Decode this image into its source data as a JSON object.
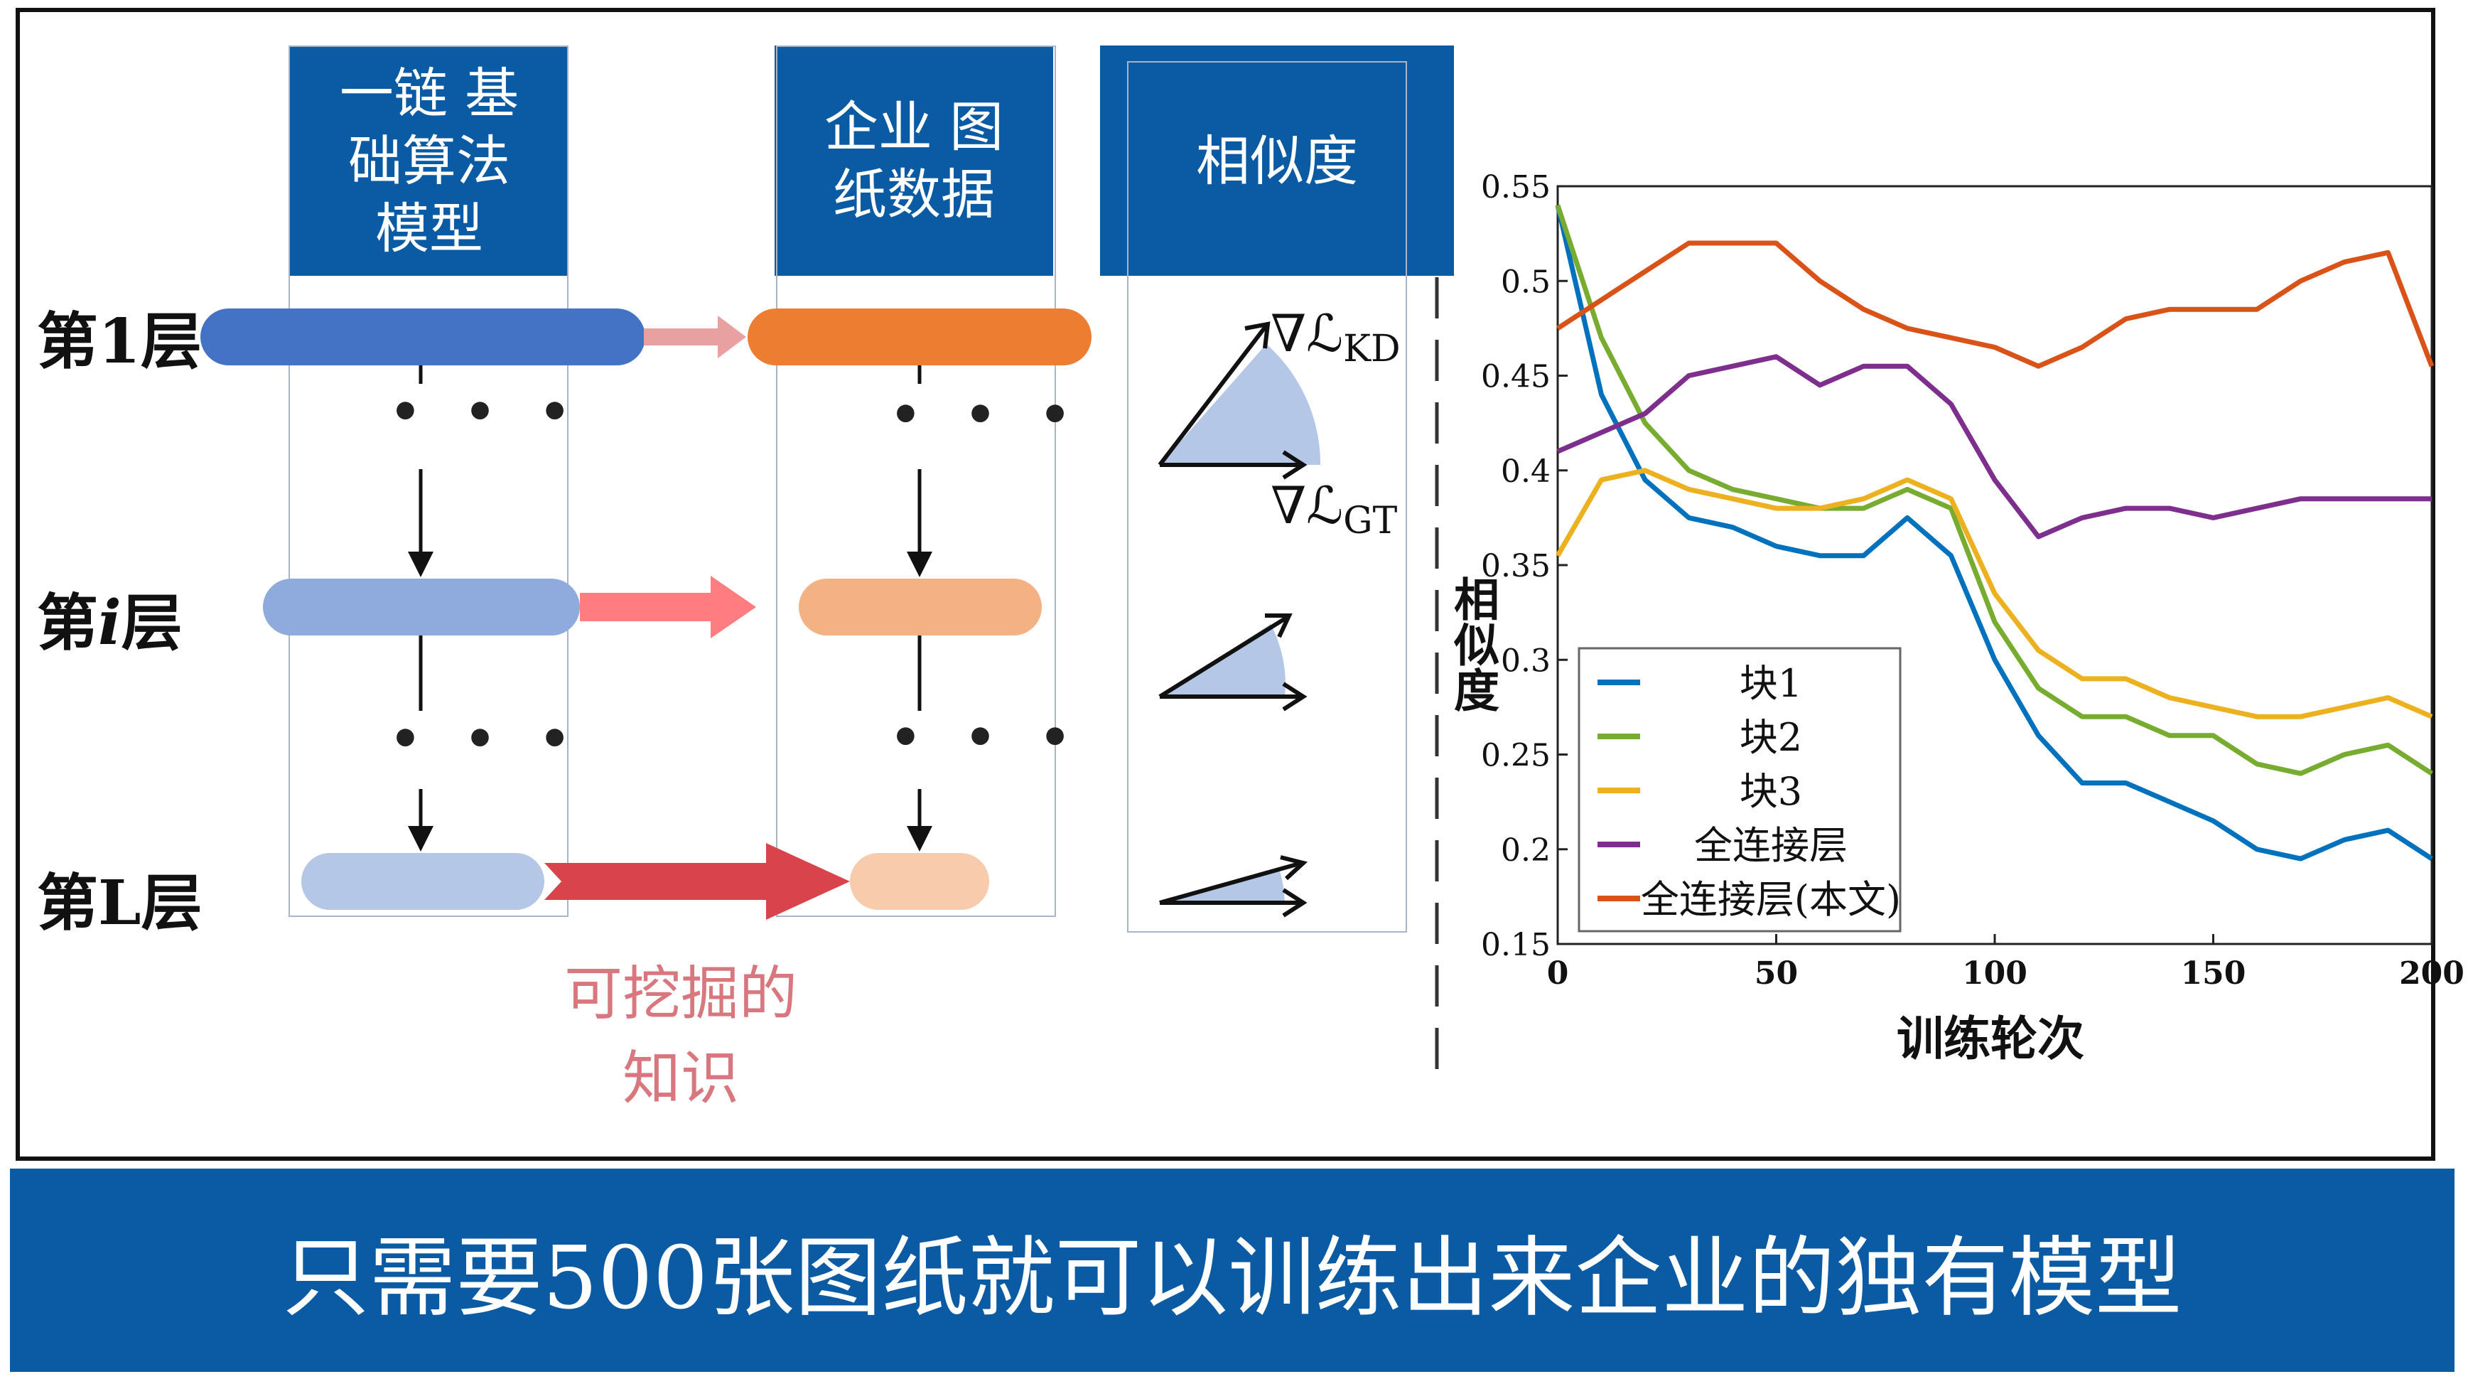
{
  "diagram": {
    "column_headers": [
      "一链 基\n础算法\n模型",
      "企业 图\n纸数据",
      "相似度"
    ],
    "layer_labels": {
      "first": "第1层",
      "middle_prefix": "第",
      "middle_italic": "i",
      "middle_suffix": "层",
      "last": "第L层"
    },
    "ellipsis": "• • •",
    "knowledge_label": "可挖掘的\n知识",
    "gradient_labels": {
      "kd_symbol": "∇ℒ",
      "kd_sub": "KD",
      "gt_symbol": "∇ℒ",
      "gt_sub": "GT"
    },
    "colors": {
      "header_blue": "#0a5aa4",
      "bar_layer1": "#4472c4",
      "bar_layeri": "#8faadc",
      "bar_layerL": "#b4c7e7",
      "target_layer1": "#ed7d31",
      "target_layeri": "#f4b183",
      "target_layerL": "#f8cbad",
      "arrow_layer1": "#e8a0a0",
      "arrow_layeri": "#ff7c80",
      "arrow_layerL": "#d9444c"
    }
  },
  "chart_data": {
    "type": "line",
    "title": "",
    "xlabel": "训练轮次",
    "ylabel": "相似度",
    "xlim": [
      0,
      200
    ],
    "ylim": [
      0.15,
      0.55
    ],
    "xticks": [
      "0",
      "50",
      "100",
      "150",
      "200"
    ],
    "yticks": [
      "0.15",
      "0.2",
      "0.25",
      "0.3",
      "0.35",
      "0.4",
      "0.45",
      "0.5",
      "0.55"
    ],
    "legend_position": "bottom-left",
    "x": [
      0,
      10,
      20,
      30,
      40,
      50,
      60,
      70,
      80,
      90,
      100,
      110,
      120,
      130,
      140,
      150,
      160,
      170,
      180,
      190,
      200
    ],
    "series": [
      {
        "name": "块1",
        "color": "#0072bd",
        "values": [
          0.54,
          0.44,
          0.395,
          0.375,
          0.37,
          0.36,
          0.355,
          0.355,
          0.375,
          0.355,
          0.3,
          0.26,
          0.235,
          0.235,
          0.225,
          0.215,
          0.2,
          0.195,
          0.205,
          0.21,
          0.195
        ]
      },
      {
        "name": "块2",
        "color": "#77ac30",
        "values": [
          0.54,
          0.47,
          0.425,
          0.4,
          0.39,
          0.385,
          0.38,
          0.38,
          0.39,
          0.38,
          0.32,
          0.285,
          0.27,
          0.27,
          0.26,
          0.26,
          0.245,
          0.24,
          0.25,
          0.255,
          0.24
        ]
      },
      {
        "name": "块3",
        "color": "#edb120",
        "values": [
          0.355,
          0.395,
          0.4,
          0.39,
          0.385,
          0.38,
          0.38,
          0.385,
          0.395,
          0.385,
          0.335,
          0.305,
          0.29,
          0.29,
          0.28,
          0.275,
          0.27,
          0.27,
          0.275,
          0.28,
          0.27
        ]
      },
      {
        "name": "全连接层",
        "color": "#7e2f8e",
        "values": [
          0.41,
          0.42,
          0.43,
          0.45,
          0.455,
          0.46,
          0.445,
          0.455,
          0.455,
          0.435,
          0.395,
          0.365,
          0.375,
          0.38,
          0.38,
          0.375,
          0.38,
          0.385,
          0.385,
          0.385,
          0.385
        ]
      },
      {
        "name": "全连接层(本文)",
        "color": "#d95319",
        "values": [
          0.475,
          0.49,
          0.505,
          0.52,
          0.52,
          0.52,
          0.5,
          0.485,
          0.475,
          0.47,
          0.465,
          0.455,
          0.465,
          0.48,
          0.485,
          0.485,
          0.485,
          0.5,
          0.51,
          0.515,
          0.455
        ]
      }
    ]
  },
  "footer": {
    "text": "只需要500张图纸就可以训练出来企业的独有模型"
  }
}
